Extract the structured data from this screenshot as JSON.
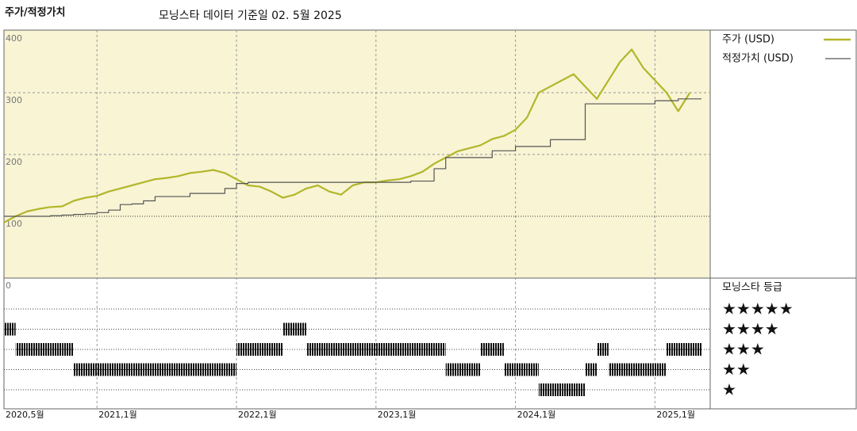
{
  "chart_data": {
    "type": "line",
    "title": "주가/적정가치",
    "subtitle": "모닝스타 데이터 기준일 02. 5월 2025",
    "x": [
      "2020-05",
      "2020-06",
      "2020-07",
      "2020-08",
      "2020-09",
      "2020-10",
      "2020-11",
      "2020-12",
      "2021-01",
      "2021-02",
      "2021-03",
      "2021-04",
      "2021-05",
      "2021-06",
      "2021-07",
      "2021-08",
      "2021-09",
      "2021-10",
      "2021-11",
      "2021-12",
      "2022-01",
      "2022-02",
      "2022-03",
      "2022-04",
      "2022-05",
      "2022-06",
      "2022-07",
      "2022-08",
      "2022-09",
      "2022-10",
      "2022-11",
      "2022-12",
      "2023-01",
      "2023-02",
      "2023-03",
      "2023-04",
      "2023-05",
      "2023-06",
      "2023-07",
      "2023-08",
      "2023-09",
      "2023-10",
      "2023-11",
      "2023-12",
      "2024-01",
      "2024-02",
      "2024-03",
      "2024-04",
      "2024-05",
      "2024-06",
      "2024-07",
      "2024-08",
      "2024-09",
      "2024-10",
      "2024-11",
      "2024-12",
      "2025-01",
      "2025-02",
      "2025-03",
      "2025-04"
    ],
    "series": [
      {
        "name": "주가 (USD)",
        "color": "#b3b62a",
        "values": [
          90,
          100,
          108,
          112,
          115,
          116,
          125,
          130,
          133,
          140,
          145,
          150,
          155,
          160,
          162,
          165,
          170,
          172,
          175,
          170,
          160,
          150,
          148,
          140,
          130,
          135,
          145,
          150,
          140,
          135,
          150,
          155,
          155,
          158,
          160,
          165,
          172,
          185,
          195,
          205,
          210,
          215,
          225,
          230,
          240,
          260,
          300,
          310,
          320,
          330,
          310,
          290,
          320,
          350,
          370,
          340,
          320,
          300,
          270,
          300
        ]
      },
      {
        "name": "적정가치 (USD)",
        "color": "#555555",
        "step": true,
        "values": [
          100,
          100,
          100,
          100,
          101,
          102,
          103,
          104,
          106,
          110,
          119,
          120,
          125,
          132,
          132,
          132,
          137,
          137,
          137,
          145,
          153,
          155,
          155,
          155,
          155,
          155,
          155,
          155,
          155,
          155,
          155,
          155,
          155,
          155,
          155,
          157,
          157,
          177,
          195,
          195,
          195,
          195,
          206,
          206,
          213,
          213,
          213,
          224,
          224,
          224,
          282,
          282,
          282,
          282,
          282,
          282,
          287,
          287,
          290,
          290
        ]
      }
    ],
    "ylim": [
      0,
      400
    ],
    "yticks": [
      0,
      100,
      200,
      300,
      400
    ],
    "grid": true,
    "legend": "right",
    "xticks": [
      {
        "value": "2020-05",
        "label": "2020,5월"
      },
      {
        "value": "2021-01",
        "label": "2021,1월"
      },
      {
        "value": "2022-01",
        "label": "2022,1월"
      },
      {
        "value": "2023-01",
        "label": "2023,1월"
      },
      {
        "value": "2024-01",
        "label": "2024,1월"
      },
      {
        "value": "2025-01",
        "label": "2025,1월"
      }
    ],
    "ratings": {
      "title": "모닝스타 등급",
      "color": "#111111",
      "levels": [
        5,
        4,
        3,
        2,
        1
      ],
      "labels": [
        "★★★★★",
        "★★★★",
        "★★★",
        "★★",
        "★"
      ],
      "values": [
        4,
        3,
        3,
        3,
        3,
        3,
        2,
        2,
        2,
        2,
        2,
        2,
        2,
        2,
        2,
        2,
        2,
        2,
        2,
        2,
        3,
        3,
        3,
        3,
        4,
        4,
        3,
        3,
        3,
        3,
        3,
        3,
        3,
        3,
        3,
        3,
        3,
        3,
        2,
        2,
        2,
        3,
        3,
        2,
        2,
        2,
        1,
        1,
        1,
        1,
        2,
        3,
        2,
        2,
        2,
        2,
        2,
        3,
        3,
        3
      ]
    }
  }
}
